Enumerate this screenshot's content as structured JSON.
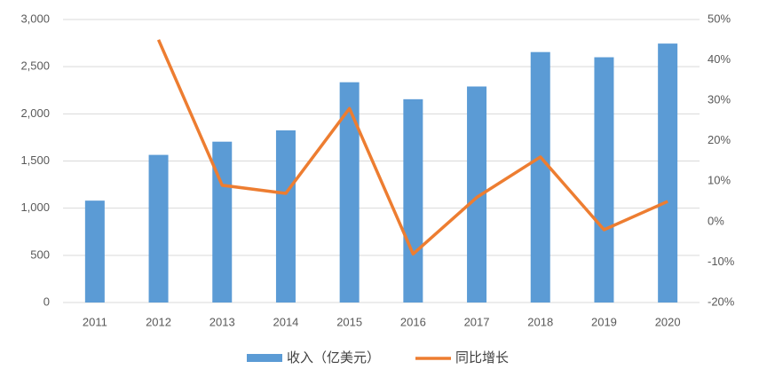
{
  "chart_data": {
    "type": "bar",
    "categories": [
      "2011",
      "2012",
      "2013",
      "2014",
      "2015",
      "2016",
      "2017",
      "2018",
      "2019",
      "2020"
    ],
    "series": [
      {
        "name": "收入（亿美元）",
        "type": "bar",
        "color": "#5b9bd5",
        "values": [
          1080,
          1565,
          1705,
          1825,
          2335,
          2155,
          2290,
          2655,
          2600,
          2745
        ]
      },
      {
        "name": "同比增长",
        "type": "line",
        "axis": "y2",
        "color": "#ed7d31",
        "values": [
          null,
          45,
          9,
          7,
          28,
          -8,
          6,
          16,
          -2,
          5
        ]
      }
    ],
    "ylim": [
      0,
      3000
    ],
    "yticks": [
      0,
      500,
      {
        "value": 1000,
        "label": "1,000"
      },
      {
        "value": 1500,
        "label": "1,500"
      },
      {
        "value": 2000,
        "label": "2,000"
      },
      {
        "value": 2500,
        "label": "2,500"
      },
      {
        "value": 3000,
        "label": "3,000"
      }
    ],
    "y2lim": [
      -20,
      50
    ],
    "y2ticks": [
      {
        "value": -20,
        "label": "-20%"
      },
      {
        "value": -10,
        "label": "-10%"
      },
      {
        "value": 0,
        "label": "0%"
      },
      {
        "value": 10,
        "label": "10%"
      },
      {
        "value": 20,
        "label": "20%"
      },
      {
        "value": 30,
        "label": "30%"
      },
      {
        "value": 40,
        "label": "40%"
      },
      {
        "value": 50,
        "label": "50%"
      }
    ],
    "grid": true,
    "legend": "bottom"
  }
}
